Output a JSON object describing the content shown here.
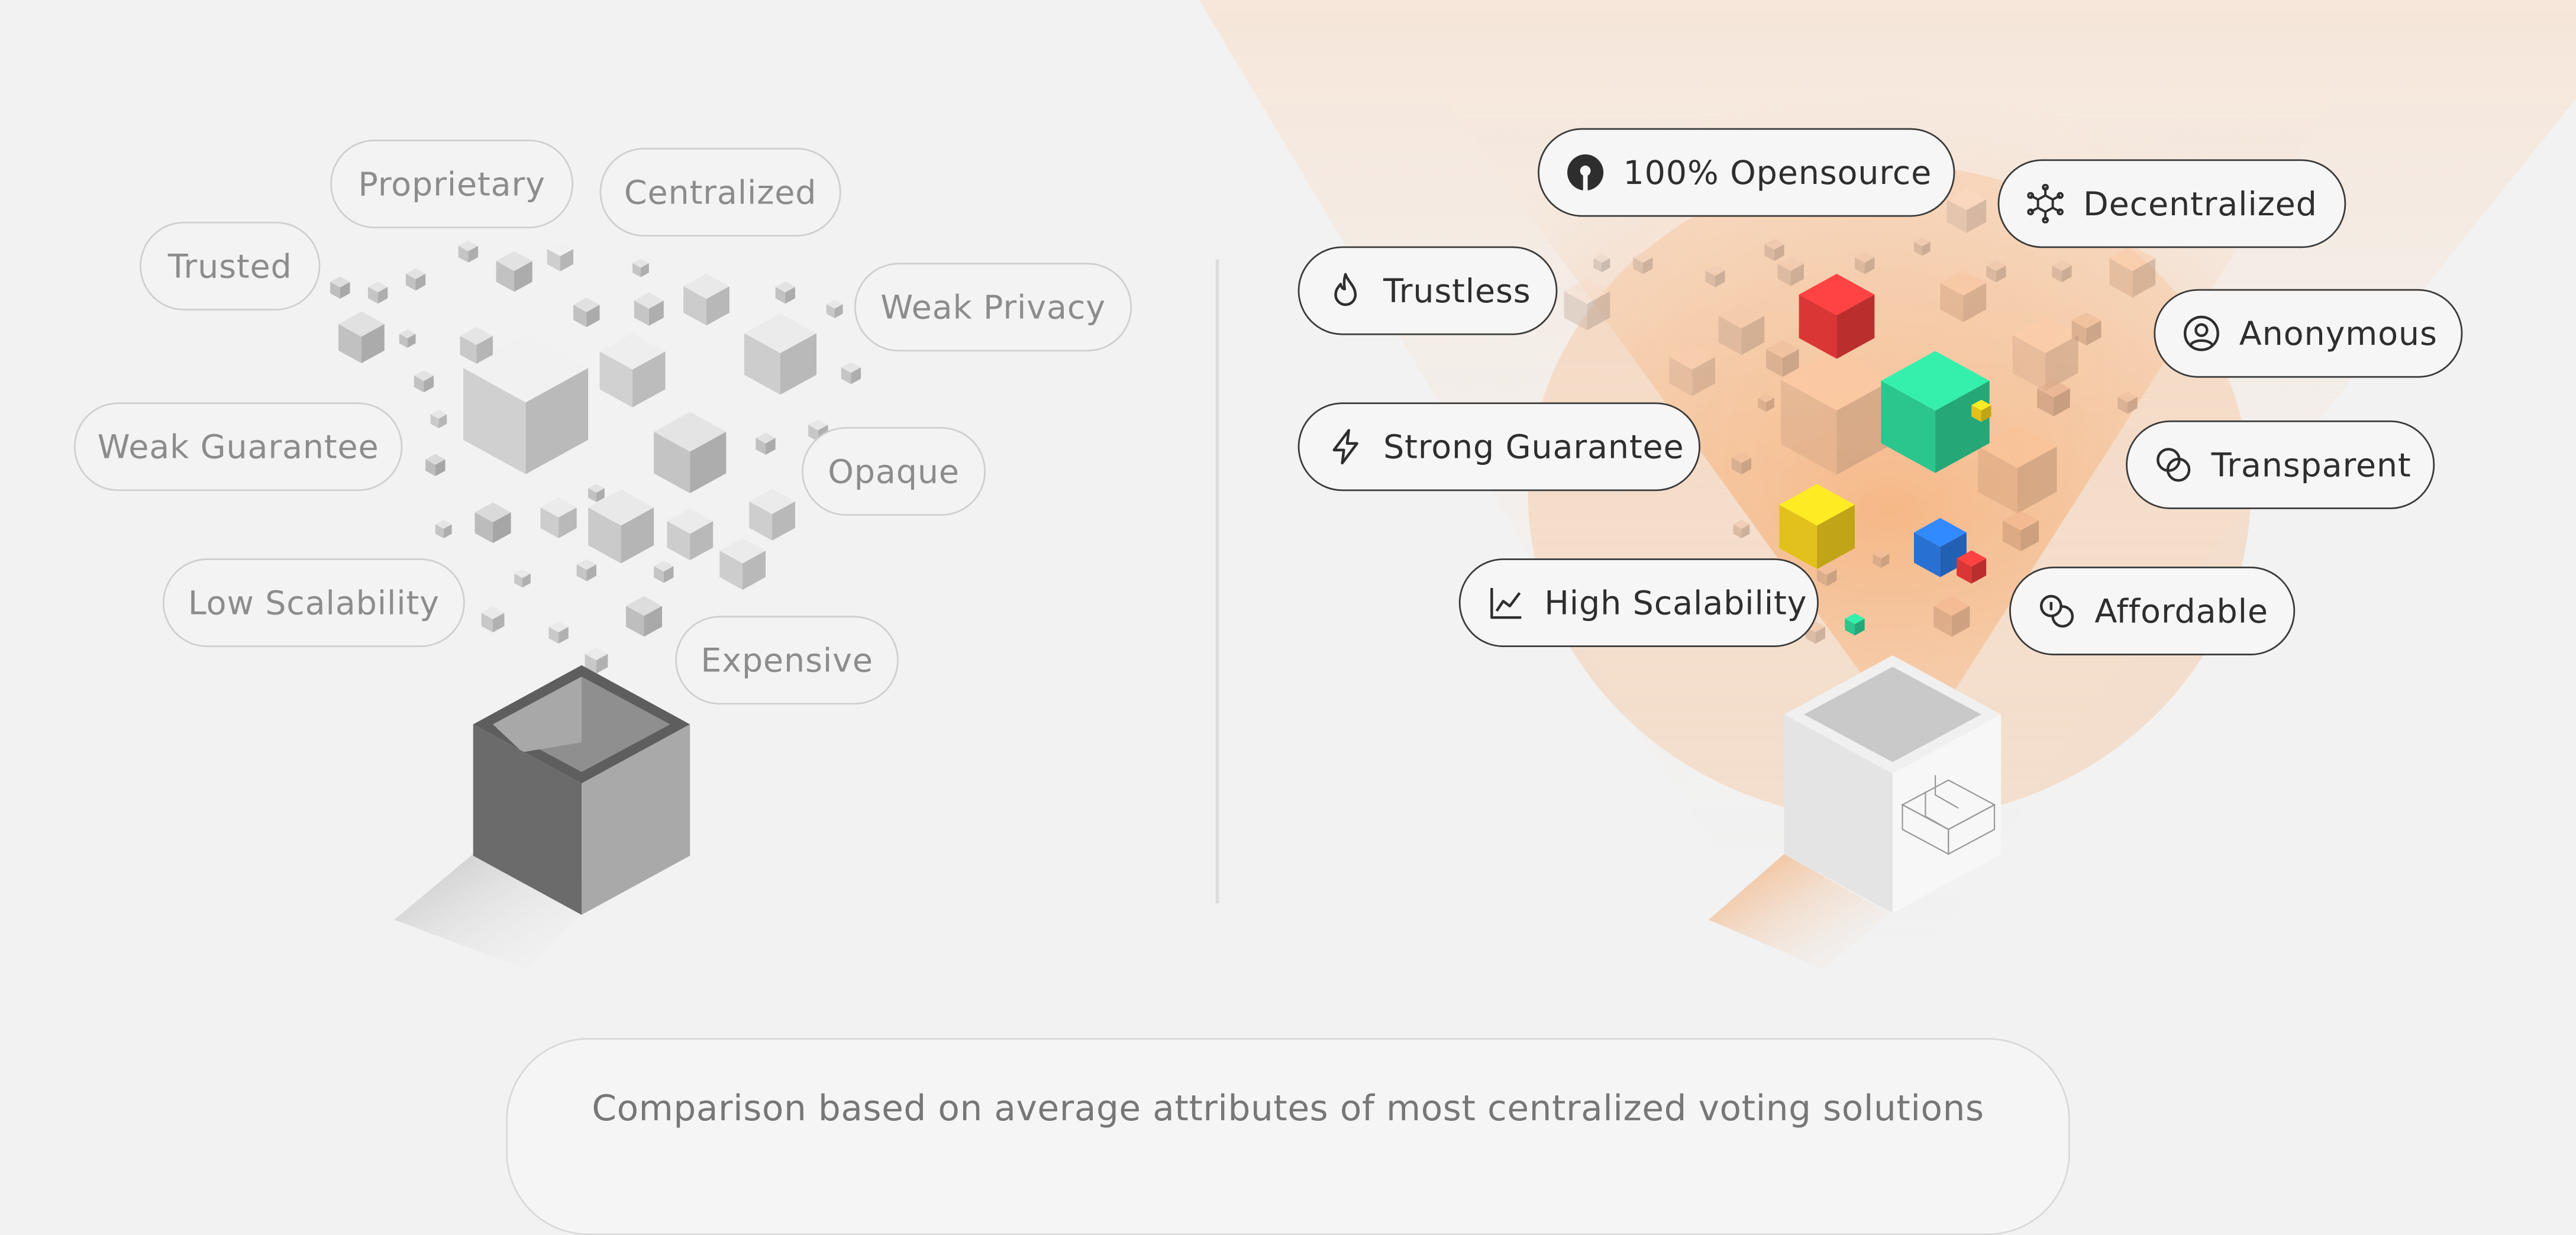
{
  "left_panel": {
    "labels": [
      "Proprietary",
      "Centralized",
      "Trusted",
      "Weak Privacy",
      "Weak Guarantee",
      "Opaque",
      "Low Scalability",
      "Expensive"
    ]
  },
  "right_panel": {
    "labels": [
      {
        "text": "100% Opensource",
        "icon": "opensource-icon"
      },
      {
        "text": "Decentralized",
        "icon": "network-icon"
      },
      {
        "text": "Trustless",
        "icon": "flame-icon"
      },
      {
        "text": "Anonymous",
        "icon": "user-circle-icon"
      },
      {
        "text": "Strong Guarantee",
        "icon": "lightning-icon"
      },
      {
        "text": "Transparent",
        "icon": "overlap-circles-icon"
      },
      {
        "text": "High Scalability",
        "icon": "chart-line-icon"
      },
      {
        "text": "Affordable",
        "icon": "coins-icon"
      }
    ]
  },
  "colors": {
    "background": "#f2f2f2",
    "glow": "#f6b989",
    "cube_red": "#ee3b3b",
    "cube_green": "#2fd69a",
    "cube_yellow": "#f7d21f",
    "cube_blue": "#2c7be5",
    "cube_purple": "#6c4ad8",
    "muted_text": "#8c8c8c",
    "dark_text": "#2e2e2e"
  },
  "footer": {
    "text": "Comparison based on average attributes of most centralized voting solutions"
  }
}
